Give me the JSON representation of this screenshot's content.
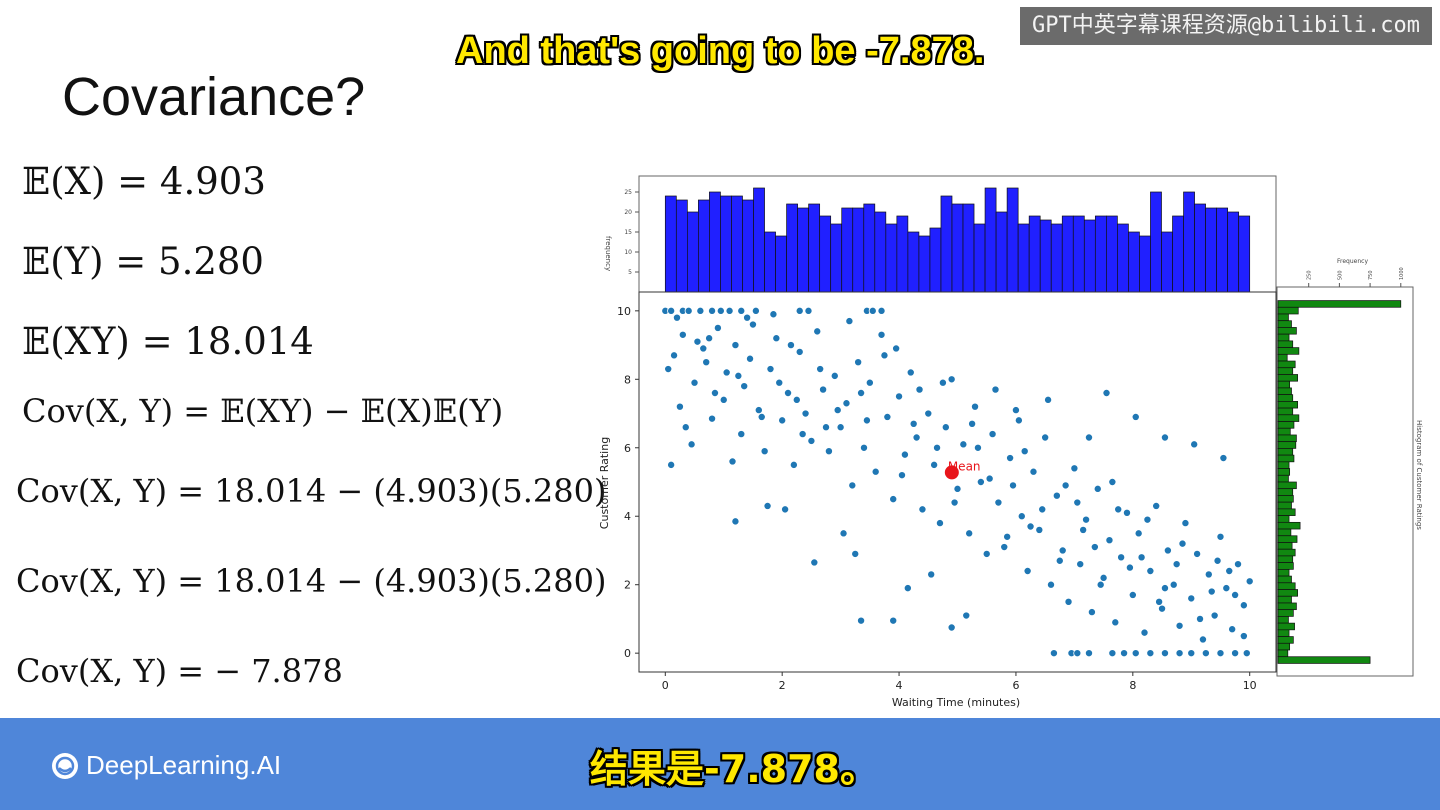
{
  "overlay": {
    "watermark": "GPT中英字幕课程资源@bilibili.com",
    "subtitle_en": "And that's going to be -7.878.",
    "subtitle_zh": "结果是-7.878。"
  },
  "slide": {
    "title": "Covariance?",
    "equations": [
      "𝔼(X) = 4.903",
      "𝔼(Y) = 5.280",
      "𝔼(XY) = 18.014",
      "Cov(X, Y) = 𝔼(XY) − 𝔼(X)𝔼(Y)",
      "Cov(X, Y) = 18.014 − (4.903)(5.280)",
      "Cov(X, Y) = 18.014 − (4.903)(5.280)",
      "Cov(X, Y) = − 7.878"
    ]
  },
  "footer": {
    "brand": "DeepLearning.AI",
    "brand_color": "#4f86d9"
  },
  "chart_data": {
    "type": "scatter",
    "xlabel": "Waiting Time (minutes)",
    "ylabel": "Customer Rating",
    "xlim": [
      -0.45,
      10.45
    ],
    "ylim": [
      -0.55,
      10.55
    ],
    "xticks": [
      "0",
      "2",
      "4",
      "6",
      "8",
      "10"
    ],
    "yticks": [
      "0",
      "2",
      "4",
      "6",
      "8",
      "10"
    ],
    "mean_point": {
      "x": 4.903,
      "y": 5.28,
      "label": "Mean",
      "color": "#e8151b"
    },
    "point_color": "#1f77b4",
    "top_hist": {
      "ylabel": "frequency",
      "yticks": [
        "5",
        "10",
        "15",
        "20",
        "25"
      ],
      "color": "#2020ff",
      "ymax": 28,
      "counts": [
        24,
        23,
        20,
        23,
        25,
        24,
        24,
        23,
        26,
        15,
        14,
        22,
        21,
        22,
        19,
        17,
        21,
        21,
        22,
        20,
        17,
        19,
        15,
        14,
        16,
        24,
        22,
        22,
        17,
        26,
        20,
        26,
        17,
        19,
        18,
        17,
        19,
        19,
        18,
        19,
        19,
        17,
        15,
        14,
        25,
        15,
        19,
        25,
        22,
        21,
        21,
        20,
        19
      ]
    },
    "right_hist": {
      "xlabel": "Frequency",
      "ylabel": "Histogram of Customer Ratings",
      "xticks": [
        "250",
        "500",
        "750",
        "1000"
      ],
      "color": "#118811",
      "xmax": 1075,
      "counts": [
        1000,
        165,
        85,
        110,
        150,
        90,
        120,
        170,
        75,
        140,
        120,
        160,
        95,
        110,
        120,
        160,
        120,
        170,
        130,
        100,
        150,
        145,
        120,
        130,
        90,
        95,
        85,
        150,
        120,
        125,
        110,
        140,
        90,
        180,
        105,
        155,
        115,
        140,
        120,
        125,
        90,
        110,
        140,
        160,
        110,
        150,
        125,
        85,
        135,
        90,
        125,
        95,
        80,
        750
      ]
    },
    "points": [
      [
        0.0,
        10
      ],
      [
        0.1,
        10
      ],
      [
        0.3,
        10
      ],
      [
        0.4,
        10
      ],
      [
        0.6,
        10
      ],
      [
        0.8,
        10
      ],
      [
        0.95,
        10
      ],
      [
        1.1,
        10
      ],
      [
        1.3,
        10
      ],
      [
        1.55,
        10
      ],
      [
        2.3,
        10
      ],
      [
        2.45,
        10
      ],
      [
        3.45,
        10
      ],
      [
        3.55,
        10
      ],
      [
        3.7,
        10
      ],
      [
        6.65,
        0
      ],
      [
        6.95,
        0
      ],
      [
        7.05,
        0
      ],
      [
        7.25,
        0
      ],
      [
        7.65,
        0
      ],
      [
        7.85,
        0
      ],
      [
        8.05,
        0
      ],
      [
        8.3,
        0
      ],
      [
        8.55,
        0
      ],
      [
        8.8,
        0
      ],
      [
        9.0,
        0
      ],
      [
        9.25,
        0
      ],
      [
        9.5,
        0
      ],
      [
        9.75,
        0
      ],
      [
        9.95,
        0
      ],
      [
        1.2,
        3.85
      ],
      [
        2.55,
        2.65
      ],
      [
        3.35,
        0.95
      ],
      [
        3.9,
        0.95
      ],
      [
        4.9,
        0.75
      ],
      [
        0.15,
        8.7
      ],
      [
        0.3,
        9.3
      ],
      [
        0.5,
        7.9
      ],
      [
        0.55,
        9.1
      ],
      [
        0.7,
        8.5
      ],
      [
        0.8,
        6.85
      ],
      [
        0.9,
        9.5
      ],
      [
        1.0,
        7.4
      ],
      [
        1.05,
        8.2
      ],
      [
        1.2,
        9.0
      ],
      [
        1.3,
        6.4
      ],
      [
        1.35,
        7.8
      ],
      [
        1.45,
        8.6
      ],
      [
        1.5,
        9.6
      ],
      [
        1.6,
        7.1
      ],
      [
        1.7,
        5.9
      ],
      [
        1.8,
        8.3
      ],
      [
        1.9,
        9.2
      ],
      [
        2.0,
        6.8
      ],
      [
        2.1,
        7.6
      ],
      [
        2.2,
        5.5
      ],
      [
        2.3,
        8.8
      ],
      [
        2.4,
        7.0
      ],
      [
        2.5,
        6.2
      ],
      [
        2.6,
        9.4
      ],
      [
        2.7,
        7.7
      ],
      [
        2.8,
        5.9
      ],
      [
        2.9,
        8.1
      ],
      [
        3.0,
        6.6
      ],
      [
        3.1,
        7.3
      ],
      [
        3.2,
        4.9
      ],
      [
        3.3,
        8.5
      ],
      [
        3.4,
        6.0
      ],
      [
        3.5,
        7.9
      ],
      [
        3.6,
        5.3
      ],
      [
        3.7,
        9.3
      ],
      [
        3.8,
        6.9
      ],
      [
        3.9,
        4.5
      ],
      [
        4.0,
        7.5
      ],
      [
        4.1,
        5.8
      ],
      [
        4.2,
        8.2
      ],
      [
        4.3,
        6.3
      ],
      [
        4.4,
        4.2
      ],
      [
        4.5,
        7.0
      ],
      [
        4.6,
        5.5
      ],
      [
        4.7,
        3.8
      ],
      [
        4.8,
        6.6
      ],
      [
        4.9,
        8.0
      ],
      [
        5.0,
        4.8
      ],
      [
        5.1,
        6.1
      ],
      [
        5.2,
        3.5
      ],
      [
        5.3,
        7.2
      ],
      [
        5.4,
        5.0
      ],
      [
        5.5,
        2.9
      ],
      [
        5.6,
        6.4
      ],
      [
        5.7,
        4.4
      ],
      [
        5.8,
        3.1
      ],
      [
        5.9,
        5.7
      ],
      [
        6.0,
        7.1
      ],
      [
        6.1,
        4.0
      ],
      [
        6.2,
        2.4
      ],
      [
        6.3,
        5.3
      ],
      [
        6.4,
        3.6
      ],
      [
        6.5,
        6.3
      ],
      [
        6.6,
        2.0
      ],
      [
        6.7,
        4.6
      ],
      [
        6.8,
        3.0
      ],
      [
        6.9,
        1.5
      ],
      [
        7.0,
        5.4
      ],
      [
        7.1,
        2.6
      ],
      [
        7.2,
        3.9
      ],
      [
        7.3,
        1.2
      ],
      [
        7.4,
        4.8
      ],
      [
        7.5,
        2.2
      ],
      [
        7.6,
        3.3
      ],
      [
        7.7,
        0.9
      ],
      [
        7.8,
        2.8
      ],
      [
        7.9,
        4.1
      ],
      [
        8.0,
        1.7
      ],
      [
        8.1,
        3.5
      ],
      [
        8.2,
        0.6
      ],
      [
        8.3,
        2.4
      ],
      [
        8.4,
        4.3
      ],
      [
        8.5,
        1.3
      ],
      [
        8.6,
        3.0
      ],
      [
        8.7,
        2.0
      ],
      [
        8.8,
        0.8
      ],
      [
        8.9,
        3.8
      ],
      [
        9.0,
        1.6
      ],
      [
        9.1,
        2.9
      ],
      [
        9.2,
        0.4
      ],
      [
        9.3,
        2.3
      ],
      [
        9.4,
        1.1
      ],
      [
        9.5,
        3.4
      ],
      [
        9.6,
        1.9
      ],
      [
        9.7,
        0.7
      ],
      [
        9.8,
        2.6
      ],
      [
        9.9,
        1.4
      ],
      [
        10.0,
        2.1
      ],
      [
        0.25,
        7.2
      ],
      [
        0.45,
        6.1
      ],
      [
        0.65,
        8.9
      ],
      [
        0.85,
        7.6
      ],
      [
        1.15,
        5.6
      ],
      [
        1.4,
        9.8
      ],
      [
        1.65,
        6.9
      ],
      [
        1.95,
        7.9
      ],
      [
        2.15,
        9.0
      ],
      [
        2.35,
        6.4
      ],
      [
        2.65,
        8.3
      ],
      [
        2.95,
        7.1
      ],
      [
        3.15,
        9.7
      ],
      [
        3.45,
        6.8
      ],
      [
        3.75,
        8.7
      ],
      [
        4.05,
        5.2
      ],
      [
        4.35,
        7.7
      ],
      [
        4.65,
        6.0
      ],
      [
        4.95,
        4.4
      ],
      [
        5.25,
        6.7
      ],
      [
        5.55,
        5.1
      ],
      [
        5.85,
        3.4
      ],
      [
        6.15,
        5.9
      ],
      [
        6.45,
        4.2
      ],
      [
        6.75,
        2.7
      ],
      [
        7.05,
        4.4
      ],
      [
        7.35,
        3.1
      ],
      [
        7.65,
        5.0
      ],
      [
        7.95,
        2.5
      ],
      [
        8.25,
        3.9
      ],
      [
        8.55,
        1.9
      ],
      [
        8.85,
        3.2
      ],
      [
        9.15,
        1.0
      ],
      [
        9.45,
        2.7
      ],
      [
        9.75,
        1.7
      ],
      [
        0.1,
        5.5
      ],
      [
        0.2,
        9.8
      ],
      [
        1.75,
        4.3
      ],
      [
        2.05,
        4.2
      ],
      [
        3.05,
        3.5
      ],
      [
        3.25,
        2.9
      ],
      [
        4.15,
        1.9
      ],
      [
        4.55,
        2.3
      ],
      [
        5.15,
        1.1
      ],
      [
        6.05,
        6.8
      ],
      [
        6.55,
        7.4
      ],
      [
        7.25,
        6.3
      ],
      [
        7.55,
        7.6
      ],
      [
        8.05,
        6.9
      ],
      [
        8.55,
        6.3
      ],
      [
        9.05,
        6.1
      ],
      [
        9.55,
        5.7
      ],
      [
        0.05,
        8.3
      ],
      [
        0.35,
        6.6
      ],
      [
        0.75,
        9.2
      ],
      [
        1.25,
        8.1
      ],
      [
        1.85,
        9.9
      ],
      [
        2.25,
        7.4
      ],
      [
        2.75,
        6.6
      ],
      [
        3.35,
        7.6
      ],
      [
        3.95,
        8.9
      ],
      [
        4.25,
        6.7
      ],
      [
        4.75,
        7.9
      ],
      [
        5.35,
        6.0
      ],
      [
        5.65,
        7.7
      ],
      [
        5.95,
        4.9
      ],
      [
        6.25,
        3.7
      ],
      [
        6.85,
        4.9
      ],
      [
        7.15,
        3.6
      ],
      [
        7.45,
        2.0
      ],
      [
        7.75,
        4.2
      ],
      [
        8.15,
        2.8
      ],
      [
        8.45,
        1.5
      ],
      [
        8.75,
        2.6
      ],
      [
        9.35,
        1.8
      ],
      [
        9.65,
        2.4
      ],
      [
        9.9,
        0.5
      ]
    ]
  }
}
